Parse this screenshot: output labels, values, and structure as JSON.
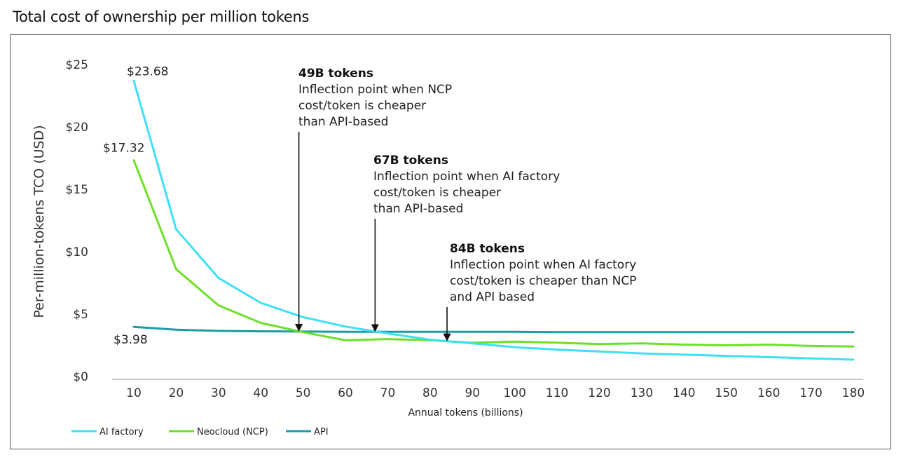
{
  "title": "Total cost of ownership per million tokens",
  "chart_data": {
    "type": "line",
    "title": "Total cost of ownership per million tokens",
    "xlabel": "Annual tokens (billions)",
    "ylabel": "Per-million-tokens TCO (USD)",
    "x": [
      10,
      20,
      30,
      40,
      50,
      60,
      70,
      80,
      90,
      100,
      110,
      120,
      130,
      140,
      150,
      160,
      170,
      180
    ],
    "xticks": [
      "10",
      "20",
      "30",
      "40",
      "50",
      "60",
      "70",
      "80",
      "90",
      "100",
      "110",
      "120",
      "130",
      "140",
      "150",
      "160",
      "170",
      "180"
    ],
    "yticks": [
      "$0",
      "$5",
      "$10",
      "$15",
      "$20",
      "$25"
    ],
    "ylim": [
      0,
      25
    ],
    "grid": false,
    "legend_position": "bottom-left",
    "series": [
      {
        "name": "AI factory",
        "color": "#3ee0f5",
        "values": [
          23.68,
          11.8,
          7.9,
          5.9,
          4.75,
          4.0,
          3.45,
          2.95,
          2.65,
          2.35,
          2.15,
          2.0,
          1.85,
          1.75,
          1.65,
          1.55,
          1.45,
          1.35
        ]
      },
      {
        "name": "Neocloud (NCP)",
        "color": "#6ee02a",
        "values": [
          17.32,
          8.6,
          5.7,
          4.3,
          3.55,
          2.9,
          3.0,
          2.9,
          2.7,
          2.8,
          2.7,
          2.6,
          2.65,
          2.55,
          2.5,
          2.55,
          2.45,
          2.4
        ]
      },
      {
        "name": "API",
        "color": "#1a9da3",
        "values": [
          3.98,
          3.75,
          3.65,
          3.62,
          3.6,
          3.58,
          3.58,
          3.58,
          3.58,
          3.58,
          3.55,
          3.55,
          3.55,
          3.55,
          3.55,
          3.55,
          3.55,
          3.55
        ]
      }
    ],
    "data_labels": [
      {
        "series": "AI factory",
        "x": 10,
        "text": "$23.68"
      },
      {
        "series": "Neocloud (NCP)",
        "x": 10,
        "text": "$17.32"
      },
      {
        "series": "API",
        "x": 10,
        "text": "$3.98"
      }
    ],
    "annotations": [
      {
        "x": 49,
        "heading": "49B tokens",
        "lines": [
          "Inflection point when NCP",
          "cost/token is cheaper",
          "than API-based"
        ]
      },
      {
        "x": 67,
        "heading": "67B tokens",
        "lines": [
          "Inflection point when AI factory",
          "cost/token is cheaper",
          "than API-based"
        ]
      },
      {
        "x": 84,
        "heading": "84B tokens",
        "lines": [
          "Inflection point when AI factory",
          "cost/token is cheaper than NCP",
          "and API based"
        ]
      }
    ]
  }
}
